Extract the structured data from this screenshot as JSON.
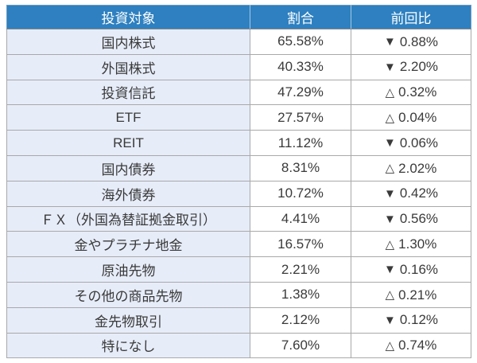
{
  "chart_data": {
    "type": "table",
    "columns": [
      "投資対象",
      "割合",
      "前回比"
    ],
    "symbols": {
      "down": "▼",
      "up": "△"
    },
    "rows": [
      {
        "target": "国内株式",
        "ratio": "65.58%",
        "direction": "down",
        "change": "0.88%"
      },
      {
        "target": "外国株式",
        "ratio": "40.33%",
        "direction": "down",
        "change": "2.20%"
      },
      {
        "target": "投資信託",
        "ratio": "47.29%",
        "direction": "up",
        "change": "0.32%"
      },
      {
        "target": "ETF",
        "ratio": "27.57%",
        "direction": "up",
        "change": "0.04%"
      },
      {
        "target": "REIT",
        "ratio": "11.12%",
        "direction": "down",
        "change": "0.06%"
      },
      {
        "target": "国内債券",
        "ratio": "8.31%",
        "direction": "up",
        "change": "2.02%"
      },
      {
        "target": "海外債券",
        "ratio": "10.72%",
        "direction": "down",
        "change": "0.42%"
      },
      {
        "target": "ＦＸ（外国為替証拠金取引）",
        "ratio": "4.41%",
        "direction": "down",
        "change": "0.56%"
      },
      {
        "target": "金やプラチナ地金",
        "ratio": "16.57%",
        "direction": "up",
        "change": "1.30%"
      },
      {
        "target": "原油先物",
        "ratio": "2.21%",
        "direction": "down",
        "change": "0.16%"
      },
      {
        "target": "その他の商品先物",
        "ratio": "1.38%",
        "direction": "up",
        "change": "0.21%"
      },
      {
        "target": "金先物取引",
        "ratio": "2.12%",
        "direction": "down",
        "change": "0.12%"
      },
      {
        "target": "特になし",
        "ratio": "7.60%",
        "direction": "up",
        "change": "0.74%"
      }
    ]
  },
  "colors": {
    "header_bg": "#2E80C0",
    "header_text": "#FFFFFF",
    "label_cell_bg": "#E6ECF8",
    "value_cell_bg": "#FFFFFF",
    "body_text": "#3A3A3A",
    "grid_line": "#A9A9A9"
  }
}
